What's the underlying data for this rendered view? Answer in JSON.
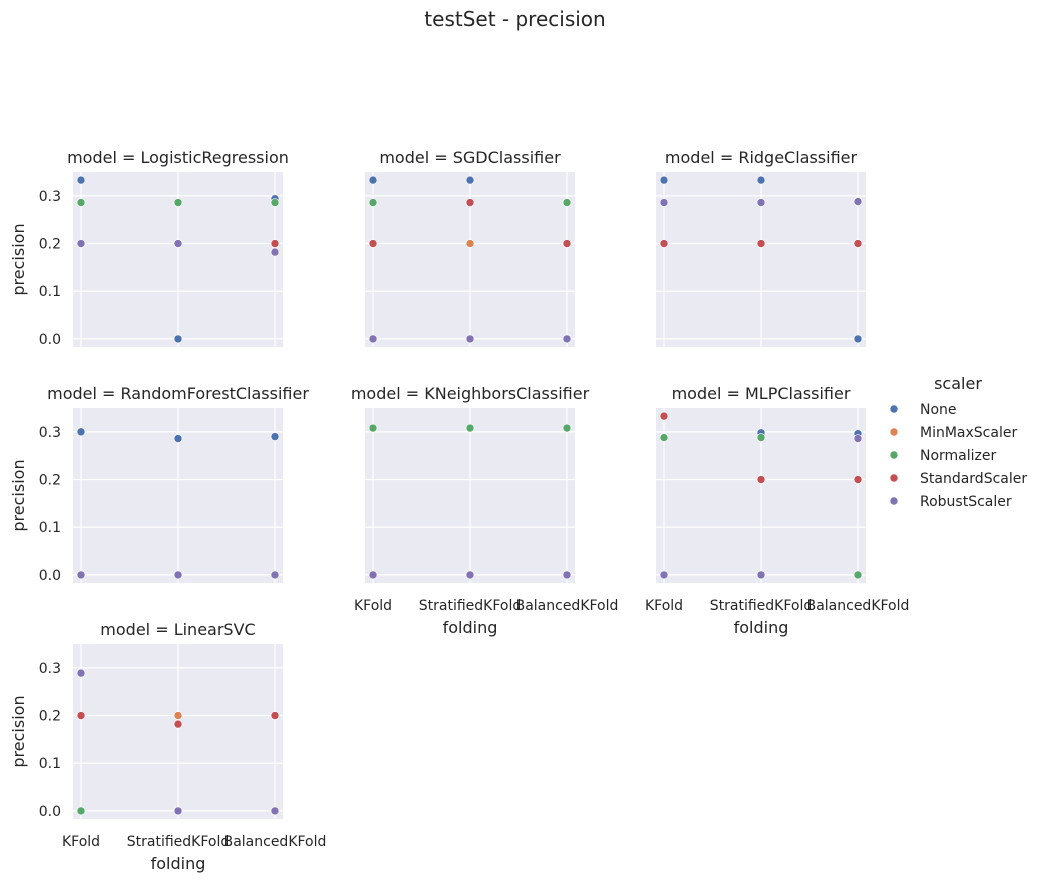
{
  "chart_data": {
    "type": "scatter",
    "title": "testSet - precision",
    "xlabel": "folding",
    "ylabel": "precision",
    "categories": [
      "KFold",
      "StratifiedKFold",
      "BalancedKFold"
    ],
    "yticks": [
      "0.0",
      "0.1",
      "0.2",
      "0.3"
    ],
    "ylim": [
      -0.017,
      0.35
    ],
    "grid": true,
    "legend": {
      "title": "scaler",
      "placement": "right",
      "entries": [
        {
          "name": "None",
          "color": "#4c72b0"
        },
        {
          "name": "MinMaxScaler",
          "color": "#dd8452"
        },
        {
          "name": "Normalizer",
          "color": "#55a868"
        },
        {
          "name": "StandardScaler",
          "color": "#c44e52"
        },
        {
          "name": "RobustScaler",
          "color": "#8172b3"
        }
      ]
    },
    "panels": [
      {
        "title": "model = LogisticRegression",
        "series": [
          {
            "name": "None",
            "values": [
              0.333,
              0.0,
              0.294
            ]
          },
          {
            "name": "MinMaxScaler",
            "values": [
              0.2,
              0.2,
              0.2
            ]
          },
          {
            "name": "Normalizer",
            "values": [
              0.286,
              0.286,
              0.286
            ]
          },
          {
            "name": "StandardScaler",
            "values": [
              0.2,
              0.2,
              0.2
            ]
          },
          {
            "name": "RobustScaler",
            "values": [
              0.2,
              0.2,
              0.182
            ]
          }
        ]
      },
      {
        "title": "model = SGDClassifier",
        "series": [
          {
            "name": "None",
            "values": [
              0.333,
              0.333,
              0.0
            ]
          },
          {
            "name": "MinMaxScaler",
            "values": [
              0.2,
              0.2,
              0.2
            ]
          },
          {
            "name": "Normalizer",
            "values": [
              0.286,
              0.286,
              0.286
            ]
          },
          {
            "name": "StandardScaler",
            "values": [
              0.2,
              0.286,
              0.2
            ]
          },
          {
            "name": "RobustScaler",
            "values": [
              0.0,
              0.0,
              0.0
            ]
          }
        ]
      },
      {
        "title": "model = RidgeClassifier",
        "series": [
          {
            "name": "None",
            "values": [
              0.333,
              0.333,
              0.0
            ]
          },
          {
            "name": "MinMaxScaler",
            "values": [
              0.2,
              0.2,
              0.2
            ]
          },
          {
            "name": "Normalizer",
            "values": [
              0.2,
              0.2,
              0.2
            ]
          },
          {
            "name": "StandardScaler",
            "values": [
              0.2,
              0.2,
              0.2
            ]
          },
          {
            "name": "RobustScaler",
            "values": [
              0.286,
              0.286,
              0.288
            ]
          }
        ]
      },
      {
        "title": "model = RandomForestClassifier",
        "series": [
          {
            "name": "None",
            "values": [
              0.3,
              0.286,
              0.29
            ]
          },
          {
            "name": "MinMaxScaler",
            "values": [
              0.0,
              0.0,
              0.0
            ]
          },
          {
            "name": "Normalizer",
            "values": [
              0.0,
              0.0,
              0.0
            ]
          },
          {
            "name": "StandardScaler",
            "values": [
              0.0,
              0.0,
              0.0
            ]
          },
          {
            "name": "RobustScaler",
            "values": [
              0.0,
              0.0,
              0.0
            ]
          }
        ]
      },
      {
        "title": "model = KNeighborsClassifier",
        "series": [
          {
            "name": "None",
            "values": [
              0.308,
              0.308,
              0.308
            ]
          },
          {
            "name": "MinMaxScaler",
            "values": [
              0.308,
              0.308,
              0.308
            ]
          },
          {
            "name": "Normalizer",
            "values": [
              0.308,
              0.308,
              0.308
            ]
          },
          {
            "name": "StandardScaler",
            "values": [
              0.0,
              0.0,
              0.0
            ]
          },
          {
            "name": "RobustScaler",
            "values": [
              0.0,
              0.0,
              0.0
            ]
          }
        ]
      },
      {
        "title": "model = MLPClassifier",
        "series": [
          {
            "name": "None",
            "values": [
              0.333,
              0.298,
              0.296
            ]
          },
          {
            "name": "MinMaxScaler",
            "values": [
              0.333,
              0.2,
              0.2
            ]
          },
          {
            "name": "Normalizer",
            "values": [
              0.288,
              0.288,
              0.0
            ]
          },
          {
            "name": "StandardScaler",
            "values": [
              0.333,
              0.2,
              0.2
            ]
          },
          {
            "name": "RobustScaler",
            "values": [
              0.0,
              0.0,
              0.286
            ]
          }
        ]
      },
      {
        "title": "model = LinearSVC",
        "series": [
          {
            "name": "None",
            "values": [
              0.2,
              0.182,
              0.2
            ]
          },
          {
            "name": "MinMaxScaler",
            "values": [
              0.2,
              0.2,
              0.2
            ]
          },
          {
            "name": "Normalizer",
            "values": [
              0.0,
              0.0,
              0.0
            ]
          },
          {
            "name": "StandardScaler",
            "values": [
              0.2,
              0.182,
              0.2
            ]
          },
          {
            "name": "RobustScaler",
            "values": [
              0.289,
              0.0,
              0.0
            ]
          }
        ]
      }
    ]
  }
}
